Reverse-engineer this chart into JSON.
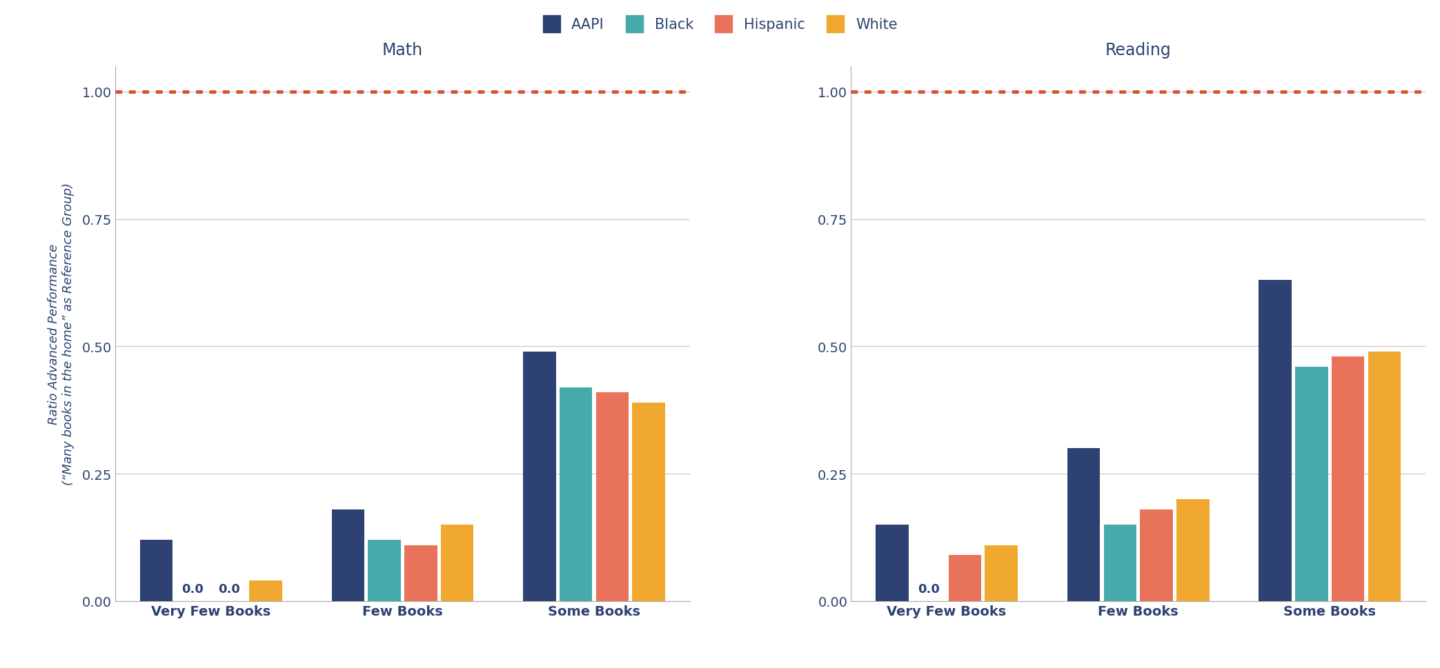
{
  "math": {
    "Very Few Books": {
      "AAPI": 0.12,
      "Black": 0.0,
      "Hispanic": 0.0,
      "White": 0.04
    },
    "Few Books": {
      "AAPI": 0.18,
      "Black": 0.12,
      "Hispanic": 0.11,
      "White": 0.15
    },
    "Some Books": {
      "AAPI": 0.49,
      "Black": 0.42,
      "Hispanic": 0.41,
      "White": 0.39
    }
  },
  "reading": {
    "Very Few Books": {
      "AAPI": 0.15,
      "Black": 0.0,
      "Hispanic": 0.09,
      "White": 0.11
    },
    "Few Books": {
      "AAPI": 0.3,
      "Black": 0.15,
      "Hispanic": 0.18,
      "White": 0.2
    },
    "Some Books": {
      "AAPI": 0.63,
      "Black": 0.46,
      "Hispanic": 0.48,
      "White": 0.49
    }
  },
  "categories": [
    "Very Few Books",
    "Few Books",
    "Some Books"
  ],
  "groups": [
    "AAPI",
    "Black",
    "Hispanic",
    "White"
  ],
  "colors": {
    "AAPI": "#2d4272",
    "Black": "#47aaaa",
    "Hispanic": "#e8735a",
    "White": "#f0a830"
  },
  "ylabel_line1": "Ratio Advanced Performance",
  "ylabel_line2": "(“Many books in the home” as Reference Group)",
  "math_title": "Math",
  "reading_title": "Reading",
  "ylim": [
    0,
    1.05
  ],
  "yticks": [
    0.0,
    0.25,
    0.5,
    0.75,
    1.0
  ],
  "reference_line": 1.0,
  "bar_width": 0.19,
  "background_color": "#ffffff",
  "grid_color": "#c8c8c8",
  "title_color": "#2d4272",
  "label_color": "#2d4272",
  "tick_label_fontsize": 14,
  "axis_title_fontsize": 17,
  "ylabel_fontsize": 13,
  "legend_fontsize": 15,
  "annotation_fontsize": 13,
  "annotation_labels": {
    "math": {
      "Very Few Books": {
        "Black": "0.0",
        "Hispanic": "0.0"
      }
    },
    "reading": {
      "Very Few Books": {
        "Black": "0.0"
      }
    }
  }
}
